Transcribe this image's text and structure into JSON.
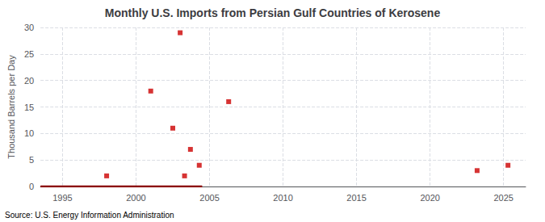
{
  "chart_data": {
    "type": "scatter",
    "title": "Monthly U.S. Imports from Persian Gulf Countries of Kerosene",
    "y_label": "Thousand Barrels per Day",
    "source": "Source: U.S. Energy Information Administration",
    "xlim": [
      1993.5,
      2026.5
    ],
    "xticks": [
      1995,
      2000,
      2005,
      2010,
      2015,
      2020,
      2025
    ],
    "ylim": [
      0,
      30
    ],
    "yticks": [
      0,
      5,
      10,
      15,
      20,
      25,
      30
    ],
    "grid": true,
    "series": [
      {
        "type": "scatter",
        "color": "#cc0000",
        "marker": "square",
        "x": [
          1998.0,
          2001.0,
          2002.5,
          2003.0,
          2003.3,
          2003.7,
          2004.3,
          2006.3,
          2023.2,
          2025.3
        ],
        "values": [
          2,
          18,
          11,
          29,
          2,
          7,
          4,
          16,
          3,
          4
        ]
      },
      {
        "type": "line",
        "color": "#8b0000",
        "line_style": "solid",
        "x": [
          1993.5,
          2004.5
        ],
        "values": [
          0,
          0
        ]
      }
    ]
  }
}
